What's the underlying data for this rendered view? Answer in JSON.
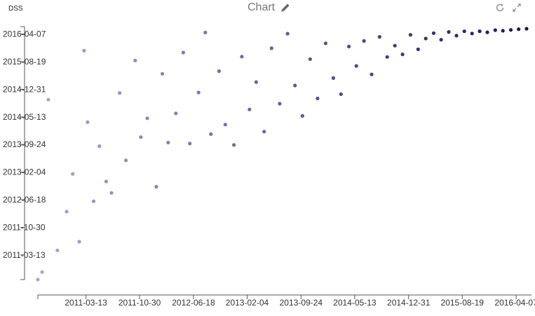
{
  "header": {
    "brand": "DSS",
    "title": "Chart"
  },
  "icons": {
    "edit": "pencil-icon",
    "refresh": "refresh-icon",
    "expand": "expand-icon"
  },
  "chart_data": {
    "type": "scatter",
    "title": "Chart",
    "xlabel": "",
    "ylabel": "",
    "x_ticks": [
      "2011-03-13",
      "2011-10-30",
      "2012-06-18",
      "2013-02-04",
      "2013-09-24",
      "2014-05-13",
      "2014-12-31",
      "2015-08-19",
      "2016-04-07"
    ],
    "y_ticks": [
      "2011-03-13",
      "2011-10-30",
      "2012-06-18",
      "2013-02-04",
      "2013-09-24",
      "2014-05-13",
      "2014-12-31",
      "2015-08-19",
      "2016-04-07"
    ],
    "xlim": [
      "2010-08-18",
      "2016-05-22"
    ],
    "ylim": [
      "2010-08-18",
      "2016-05-22"
    ],
    "color_gradient": [
      "#a9a7d6",
      "#1a1650"
    ],
    "grid": false,
    "legend": "none",
    "points": [
      [
        "2010-08-18",
        "2010-08-18"
      ],
      [
        "2010-09-05",
        "2010-10-20"
      ],
      [
        "2010-10-02",
        "2014-10-05"
      ],
      [
        "2010-11-10",
        "2011-04-20"
      ],
      [
        "2010-12-20",
        "2012-03-10"
      ],
      [
        "2011-01-15",
        "2013-01-20"
      ],
      [
        "2011-02-12",
        "2011-07-02"
      ],
      [
        "2011-03-05",
        "2015-11-20"
      ],
      [
        "2011-03-20",
        "2014-03-30"
      ],
      [
        "2011-04-15",
        "2012-06-05"
      ],
      [
        "2011-05-10",
        "2013-09-10"
      ],
      [
        "2011-06-08",
        "2012-11-18"
      ],
      [
        "2011-07-01",
        "2012-08-14"
      ],
      [
        "2011-08-05",
        "2014-11-30"
      ],
      [
        "2011-09-01",
        "2013-05-14"
      ],
      [
        "2011-10-11",
        "2015-08-30"
      ],
      [
        "2011-11-04",
        "2013-11-25"
      ],
      [
        "2011-12-02",
        "2014-05-02"
      ],
      [
        "2012-01-10",
        "2012-10-05"
      ],
      [
        "2012-02-05",
        "2015-05-10"
      ],
      [
        "2012-03-01",
        "2013-10-10"
      ],
      [
        "2012-04-03",
        "2014-06-12"
      ],
      [
        "2012-05-05",
        "2015-11-04"
      ],
      [
        "2012-06-02",
        "2013-10-02"
      ],
      [
        "2012-07-10",
        "2014-12-04"
      ],
      [
        "2012-08-08",
        "2016-04-20"
      ],
      [
        "2012-09-01",
        "2013-12-20"
      ],
      [
        "2012-10-06",
        "2015-06-01"
      ],
      [
        "2012-11-02",
        "2014-03-10"
      ],
      [
        "2012-12-09",
        "2013-09-20"
      ],
      [
        "2013-01-12",
        "2015-10-01"
      ],
      [
        "2013-02-14",
        "2014-07-15"
      ],
      [
        "2013-03-15",
        "2015-03-02"
      ],
      [
        "2013-04-18",
        "2014-01-10"
      ],
      [
        "2013-05-20",
        "2015-12-10"
      ],
      [
        "2013-06-24",
        "2014-09-01"
      ],
      [
        "2013-07-28",
        "2016-04-10"
      ],
      [
        "2013-08-29",
        "2015-02-01"
      ],
      [
        "2013-09-30",
        "2014-05-22"
      ],
      [
        "2013-11-02",
        "2015-09-10"
      ],
      [
        "2013-12-04",
        "2014-10-15"
      ],
      [
        "2014-01-08",
        "2016-01-20"
      ],
      [
        "2014-02-10",
        "2015-04-04"
      ],
      [
        "2014-03-15",
        "2014-11-20"
      ],
      [
        "2014-04-18",
        "2015-12-25"
      ],
      [
        "2014-05-20",
        "2015-07-15"
      ],
      [
        "2014-06-22",
        "2016-02-10"
      ],
      [
        "2014-07-25",
        "2015-05-05"
      ],
      [
        "2014-08-28",
        "2016-03-15"
      ],
      [
        "2014-09-30",
        "2015-09-28"
      ],
      [
        "2014-11-02",
        "2016-01-01"
      ],
      [
        "2014-12-05",
        "2015-10-20"
      ],
      [
        "2015-01-08",
        "2016-04-01"
      ],
      [
        "2015-02-10",
        "2015-12-01"
      ],
      [
        "2015-03-15",
        "2016-03-01"
      ],
      [
        "2015-04-18",
        "2016-04-15"
      ],
      [
        "2015-05-20",
        "2016-02-20"
      ],
      [
        "2015-06-22",
        "2016-04-25"
      ],
      [
        "2015-07-25",
        "2016-03-25"
      ],
      [
        "2015-08-28",
        "2016-04-30"
      ],
      [
        "2015-09-30",
        "2016-04-12"
      ],
      [
        "2015-11-02",
        "2016-05-01"
      ],
      [
        "2015-12-05",
        "2016-04-22"
      ],
      [
        "2016-01-08",
        "2016-05-10"
      ],
      [
        "2016-02-10",
        "2016-05-05"
      ],
      [
        "2016-03-15",
        "2016-05-12"
      ],
      [
        "2016-04-18",
        "2016-05-18"
      ],
      [
        "2016-05-22",
        "2016-05-22"
      ]
    ]
  }
}
